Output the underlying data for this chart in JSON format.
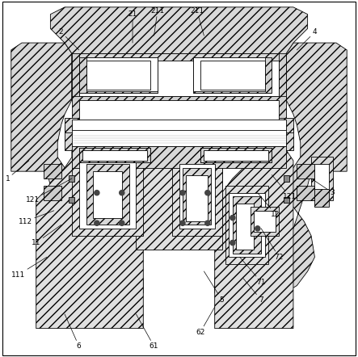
{
  "bg_color": "#ffffff",
  "line_color": "#000000",
  "figsize": [
    4.43,
    4.42
  ],
  "dpi": 100
}
